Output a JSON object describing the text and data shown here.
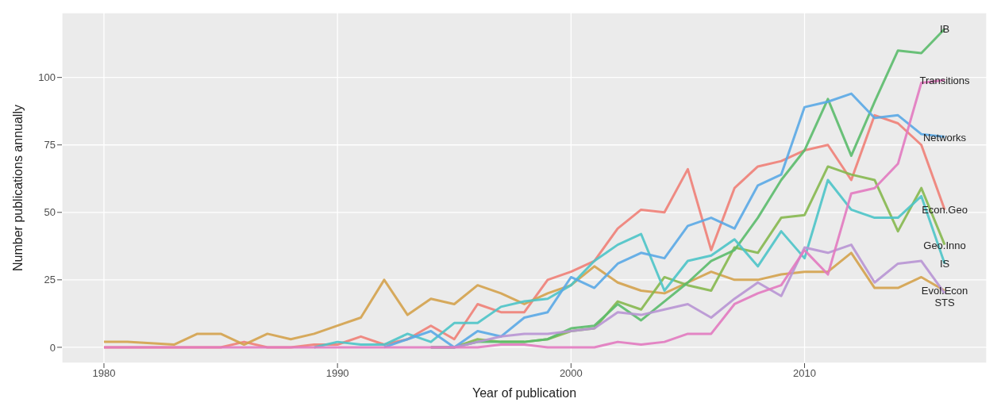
{
  "chart_data": {
    "type": "line",
    "xlabel": "Year of publication",
    "ylabel": "Number publications annually",
    "x": [
      1980,
      1981,
      1982,
      1983,
      1984,
      1985,
      1986,
      1987,
      1988,
      1989,
      1990,
      1991,
      1992,
      1993,
      1994,
      1995,
      1996,
      1997,
      1998,
      1999,
      2000,
      2001,
      2002,
      2003,
      2004,
      2005,
      2006,
      2007,
      2008,
      2009,
      2010,
      2011,
      2012,
      2013,
      2014,
      2015,
      2016
    ],
    "xlim": [
      1978.2,
      2017.8
    ],
    "xticks": [
      1980,
      1990,
      2000,
      2010
    ],
    "ylim": [
      -5.9,
      124
    ],
    "yticks": [
      0,
      25,
      50,
      75,
      100
    ],
    "grid": true,
    "marker": "none",
    "line_style": "solid",
    "series": [
      {
        "name": "Econ.Geo",
        "color": "#ef7f77",
        "values": [
          0,
          0,
          0,
          0,
          0,
          0,
          2,
          0,
          0,
          1,
          1,
          4,
          1,
          3,
          8,
          3,
          16,
          13,
          13,
          25,
          28,
          32,
          44,
          51,
          50,
          66,
          36,
          59,
          67,
          69,
          73,
          75,
          62,
          86,
          83,
          75,
          51
        ]
      },
      {
        "name": "Evol.Econ",
        "color": "#d4a24c",
        "values": [
          2,
          2,
          1.5,
          1,
          5,
          5,
          1,
          5,
          3,
          5,
          8,
          11,
          25,
          12,
          18,
          16,
          23,
          20,
          16,
          20,
          23,
          30,
          24,
          21,
          20,
          24,
          28,
          25,
          25,
          27,
          28,
          28,
          35,
          22,
          22,
          26,
          21
        ]
      },
      {
        "name": "Geo.Inno",
        "color": "#86b84f",
        "values": [
          null,
          null,
          null,
          null,
          null,
          null,
          null,
          null,
          null,
          null,
          null,
          null,
          null,
          null,
          0,
          0,
          3,
          2,
          2,
          3,
          6,
          7,
          17,
          14,
          26,
          23,
          21,
          37,
          35,
          48,
          49,
          67,
          64,
          62,
          43,
          59,
          38
        ]
      },
      {
        "name": "IB",
        "color": "#5bbb6b",
        "values": [
          null,
          null,
          null,
          null,
          null,
          null,
          null,
          null,
          null,
          null,
          null,
          null,
          null,
          null,
          0,
          0,
          2,
          2,
          2,
          3,
          7,
          8,
          16,
          10,
          17,
          24,
          32,
          36,
          48,
          62,
          73,
          92,
          71,
          91,
          110,
          109,
          118
        ]
      },
      {
        "name": "IS",
        "color": "#4cc4c8",
        "values": [
          null,
          null,
          null,
          null,
          null,
          null,
          null,
          null,
          null,
          0,
          2,
          1,
          1,
          5,
          2,
          9,
          9,
          15,
          17,
          18,
          23,
          32,
          38,
          42,
          21,
          32,
          34,
          40,
          30,
          43,
          33,
          62,
          51,
          48,
          48,
          56,
          31
        ]
      },
      {
        "name": "Networks",
        "color": "#5aa9e6",
        "values": [
          null,
          null,
          null,
          null,
          null,
          null,
          null,
          null,
          null,
          null,
          null,
          null,
          0,
          3,
          6,
          0,
          6,
          4,
          11,
          13,
          26,
          22,
          31,
          35,
          33,
          45,
          48,
          44,
          60,
          64,
          89,
          91,
          94,
          85,
          86,
          79,
          78
        ]
      },
      {
        "name": "STS",
        "color": "#b895d4",
        "values": [
          null,
          null,
          null,
          null,
          null,
          null,
          null,
          null,
          null,
          null,
          null,
          null,
          null,
          null,
          0,
          0,
          2,
          4,
          5,
          5,
          6,
          7,
          13,
          12,
          14,
          16,
          11,
          18,
          24,
          19,
          37,
          35,
          38,
          24,
          31,
          32,
          20
        ]
      },
      {
        "name": "Transitions",
        "color": "#e27ac0",
        "values": [
          0,
          0,
          0,
          0,
          0,
          0,
          0,
          0,
          0,
          0,
          0,
          0,
          0,
          0,
          0,
          0,
          0,
          1,
          1,
          0,
          0,
          0,
          2,
          1,
          2,
          5,
          5,
          16,
          20,
          23,
          36,
          27,
          57,
          59,
          68,
          98,
          99
        ]
      }
    ]
  }
}
